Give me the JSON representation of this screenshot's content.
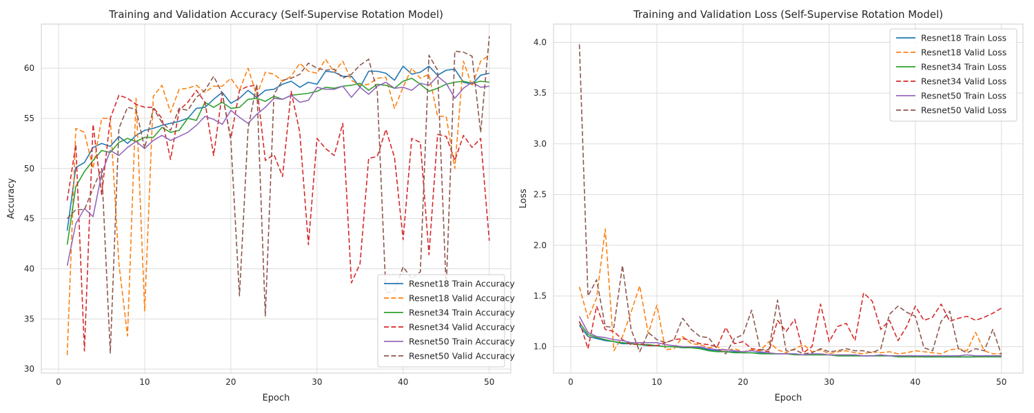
{
  "chart_data": [
    {
      "type": "line",
      "title": "Training and Validation Accuracy (Self-Supervise Rotation Model)",
      "xlabel": "Epoch",
      "ylabel": "Accuracy",
      "xlim": [
        -2,
        52.5
      ],
      "ylim": [
        29.6,
        64.4
      ],
      "xticks": [
        0,
        10,
        20,
        30,
        40,
        50
      ],
      "yticks": [
        30,
        35,
        40,
        45,
        50,
        55,
        60
      ],
      "grid": true,
      "legend_position": "lower-right",
      "x": [
        1,
        2,
        3,
        4,
        5,
        6,
        7,
        8,
        9,
        10,
        11,
        12,
        13,
        14,
        15,
        16,
        17,
        18,
        19,
        20,
        21,
        22,
        23,
        24,
        25,
        26,
        27,
        28,
        29,
        30,
        31,
        32,
        33,
        34,
        35,
        36,
        37,
        38,
        39,
        40,
        41,
        42,
        43,
        44,
        45,
        46,
        47,
        48,
        49,
        50
      ],
      "series": [
        {
          "name": "Resnet18 Train Accuracy",
          "color": "#1f77b4",
          "dash": "solid",
          "values": [
            43.8,
            50.1,
            50.6,
            52.1,
            52.5,
            52.2,
            53.2,
            52.5,
            53.3,
            53.8,
            54.0,
            54.3,
            54.5,
            54.7,
            55.0,
            56.0,
            56.1,
            56.9,
            57.6,
            56.5,
            57.0,
            57.8,
            57.1,
            57.8,
            57.9,
            58.4,
            58.7,
            58.1,
            58.6,
            58.4,
            59.7,
            59.6,
            59.2,
            59.2,
            58.1,
            59.7,
            59.7,
            59.5,
            58.8,
            60.2,
            59.4,
            59.6,
            60.2,
            59.3,
            59.8,
            59.9,
            58.6,
            58.4,
            59.3,
            59.5
          ]
        },
        {
          "name": "Resnet18 Valid Accuracy",
          "color": "#ff7f0e",
          "dash": "dashed",
          "values": [
            31.4,
            54.0,
            53.6,
            50.0,
            55.0,
            55.0,
            40.5,
            33.3,
            57.0,
            35.8,
            57.2,
            58.3,
            55.6,
            57.9,
            58.0,
            58.3,
            57.6,
            58.2,
            58.2,
            59.0,
            57.8,
            60.0,
            57.3,
            59.6,
            59.4,
            58.7,
            59.2,
            60.5,
            59.7,
            59.5,
            60.9,
            59.6,
            60.7,
            58.8,
            58.3,
            58.4,
            59.0,
            59.1,
            56.0,
            58.1,
            60.0,
            59.0,
            59.4,
            55.2,
            55.2,
            50.0,
            60.7,
            58.2,
            60.7,
            61.3
          ]
        },
        {
          "name": "Resnet34 Train Accuracy",
          "color": "#2ca02c",
          "dash": "solid",
          "values": [
            42.4,
            48.2,
            49.7,
            50.8,
            51.8,
            51.6,
            52.6,
            53.0,
            52.7,
            53.1,
            53.1,
            54.1,
            53.6,
            53.8,
            55.0,
            54.8,
            56.6,
            56.1,
            56.6,
            56.0,
            56.1,
            56.9,
            57.0,
            56.7,
            57.2,
            56.9,
            57.3,
            57.4,
            57.5,
            57.7,
            58.1,
            58.0,
            58.2,
            58.3,
            58.5,
            57.8,
            58.4,
            58.3,
            58.0,
            58.7,
            59.0,
            58.4,
            57.7,
            58.0,
            58.4,
            58.6,
            58.7,
            58.5,
            58.7,
            58.6
          ]
        },
        {
          "name": "Resnet34 Valid Accuracy",
          "color": "#d62728",
          "dash": "dashed",
          "values": [
            46.8,
            52.4,
            31.8,
            54.4,
            47.4,
            55.0,
            57.3,
            57.0,
            56.4,
            56.1,
            56.1,
            55.0,
            50.9,
            55.8,
            56.6,
            57.8,
            56.6,
            51.3,
            57.5,
            53.0,
            57.8,
            58.2,
            58.3,
            50.8,
            51.4,
            49.2,
            57.7,
            53.6,
            42.4,
            53.0,
            52.0,
            51.3,
            54.5,
            38.6,
            40.5,
            51.0,
            51.2,
            53.9,
            51.1,
            42.9,
            53.0,
            52.6,
            41.4,
            53.4,
            53.2,
            50.8,
            53.3,
            52.1,
            53.0,
            42.8
          ]
        },
        {
          "name": "Resnet50 Train Accuracy",
          "color": "#9467bd",
          "dash": "solid",
          "values": [
            40.3,
            44.5,
            46.0,
            45.2,
            49.5,
            51.8,
            51.3,
            52.1,
            52.7,
            52.0,
            52.8,
            53.3,
            52.8,
            53.2,
            53.6,
            54.3,
            55.2,
            54.9,
            54.4,
            55.8,
            55.1,
            54.5,
            55.4,
            56.1,
            57.0,
            56.9,
            57.3,
            56.6,
            56.8,
            58.1,
            57.9,
            57.9,
            58.2,
            57.1,
            58.1,
            57.4,
            58.2,
            58.6,
            58.0,
            58.1,
            57.8,
            58.5,
            58.3,
            59.2,
            58.5,
            57.0,
            58.0,
            58.6,
            58.1,
            58.2
          ]
        },
        {
          "name": "Resnet50 Valid Accuracy",
          "color": "#8c564b",
          "dash": "dashed",
          "values": [
            45.0,
            45.9,
            45.9,
            48.0,
            50.0,
            31.6,
            54.0,
            56.1,
            55.9,
            52.0,
            56.0,
            54.6,
            53.8,
            56.0,
            55.8,
            57.1,
            57.8,
            59.2,
            57.5,
            52.8,
            37.3,
            54.0,
            58.4,
            35.3,
            57.4,
            58.8,
            59.0,
            59.4,
            60.5,
            60.0,
            59.8,
            59.9,
            59.0,
            59.4,
            60.3,
            60.9,
            57.7,
            37.6,
            37.8,
            40.2,
            39.0,
            39.7,
            61.3,
            59.8,
            38.0,
            61.7,
            61.6,
            61.2,
            53.6,
            63.2
          ]
        }
      ]
    },
    {
      "type": "line",
      "title": "Training and Validation Loss (Self-Supervise Rotation Model)",
      "xlabel": "Epoch",
      "ylabel": "Loss",
      "xlim": [
        -2,
        52.5
      ],
      "ylim": [
        0.74,
        4.18
      ],
      "xticks": [
        0,
        10,
        20,
        30,
        40,
        50
      ],
      "yticks": [
        1.0,
        1.5,
        2.0,
        2.5,
        3.0,
        3.5,
        4.0
      ],
      "grid": true,
      "legend_position": "upper-right",
      "x": [
        1,
        2,
        3,
        4,
        5,
        6,
        7,
        8,
        9,
        10,
        11,
        12,
        13,
        14,
        15,
        16,
        17,
        18,
        19,
        20,
        21,
        22,
        23,
        24,
        25,
        26,
        27,
        28,
        29,
        30,
        31,
        32,
        33,
        34,
        35,
        36,
        37,
        38,
        39,
        40,
        41,
        42,
        43,
        44,
        45,
        46,
        47,
        48,
        49,
        50
      ],
      "series": [
        {
          "name": "Resnet18 Train Loss",
          "color": "#1f77b4",
          "dash": "solid",
          "values": [
            1.21,
            1.1,
            1.08,
            1.06,
            1.05,
            1.03,
            1.03,
            1.02,
            1.01,
            1.01,
            1.0,
            1.0,
            0.99,
            0.99,
            0.99,
            0.97,
            0.96,
            0.95,
            0.95,
            0.94,
            0.94,
            0.94,
            0.93,
            0.93,
            0.93,
            0.93,
            0.92,
            0.92,
            0.92,
            0.92,
            0.91,
            0.91,
            0.91,
            0.91,
            0.91,
            0.91,
            0.91,
            0.91,
            0.91,
            0.91,
            0.9,
            0.9,
            0.9,
            0.9,
            0.9,
            0.9,
            0.9,
            0.91,
            0.91,
            0.91
          ]
        },
        {
          "name": "Resnet18 Valid Loss",
          "color": "#ff7f0e",
          "dash": "dashed",
          "values": [
            1.59,
            1.28,
            1.48,
            2.16,
            0.96,
            1.1,
            1.34,
            1.6,
            1.13,
            1.41,
            0.97,
            0.98,
            1.1,
            1.03,
            1.02,
            0.99,
            1.0,
            0.96,
            0.98,
            0.95,
            0.97,
            0.96,
            1.05,
            0.97,
            0.94,
            0.98,
            1.02,
            0.95,
            0.97,
            0.93,
            0.95,
            0.96,
            0.94,
            0.93,
            0.95,
            0.94,
            0.95,
            0.93,
            0.94,
            0.96,
            0.95,
            0.94,
            0.93,
            0.97,
            0.98,
            0.96,
            1.14,
            0.96,
            0.93,
            0.93
          ]
        },
        {
          "name": "Resnet34 Train Loss",
          "color": "#2ca02c",
          "dash": "solid",
          "values": [
            1.24,
            1.12,
            1.09,
            1.07,
            1.05,
            1.04,
            1.03,
            1.02,
            1.02,
            1.01,
            1.0,
            1.0,
            0.99,
            0.99,
            0.98,
            0.96,
            0.95,
            0.95,
            0.94,
            0.94,
            0.94,
            0.93,
            0.93,
            0.93,
            0.93,
            0.92,
            0.92,
            0.92,
            0.92,
            0.92,
            0.91,
            0.91,
            0.91,
            0.91,
            0.91,
            0.91,
            0.91,
            0.9,
            0.9,
            0.9,
            0.9,
            0.9,
            0.9,
            0.9,
            0.9,
            0.9,
            0.9,
            0.9,
            0.9,
            0.9
          ]
        },
        {
          "name": "Resnet34 Valid Loss",
          "color": "#d62728",
          "dash": "dashed",
          "values": [
            1.25,
            0.98,
            1.4,
            1.17,
            1.15,
            1.07,
            1.02,
            1.03,
            1.01,
            1.01,
            1.04,
            1.07,
            1.08,
            1.06,
            1.03,
            1.02,
            1.0,
            1.19,
            1.03,
            1.05,
            0.98,
            0.97,
            0.95,
            1.26,
            1.15,
            1.27,
            0.94,
            1.0,
            1.42,
            1.05,
            1.2,
            1.23,
            1.06,
            1.53,
            1.45,
            1.17,
            1.26,
            1.06,
            1.2,
            1.4,
            1.26,
            1.29,
            1.42,
            1.25,
            1.28,
            1.3,
            1.26,
            1.29,
            1.33,
            1.38
          ]
        },
        {
          "name": "Resnet50 Train Loss",
          "color": "#9467bd",
          "dash": "solid",
          "values": [
            1.3,
            1.14,
            1.1,
            1.09,
            1.07,
            1.06,
            1.04,
            1.04,
            1.04,
            1.04,
            1.02,
            1.01,
            1.0,
            1.0,
            1.0,
            0.98,
            0.97,
            0.97,
            0.96,
            0.95,
            0.96,
            0.95,
            0.94,
            0.93,
            0.93,
            0.93,
            0.92,
            0.93,
            0.93,
            0.92,
            0.92,
            0.92,
            0.92,
            0.91,
            0.91,
            0.92,
            0.91,
            0.91,
            0.91,
            0.91,
            0.91,
            0.91,
            0.91,
            0.91,
            0.91,
            0.92,
            0.91,
            0.91,
            0.91,
            0.91
          ]
        },
        {
          "name": "Resnet50 Valid Loss",
          "color": "#8c564b",
          "dash": "dashed",
          "values": [
            3.98,
            1.5,
            1.66,
            1.2,
            1.19,
            1.8,
            1.17,
            0.95,
            1.14,
            1.07,
            1.04,
            1.07,
            1.28,
            1.17,
            1.1,
            1.09,
            0.98,
            0.93,
            1.08,
            1.12,
            1.36,
            0.97,
            0.97,
            1.46,
            0.96,
            0.97,
            0.93,
            0.94,
            0.98,
            0.95,
            0.96,
            0.98,
            0.96,
            0.96,
            0.94,
            0.98,
            1.32,
            1.4,
            1.34,
            1.3,
            0.99,
            0.96,
            1.25,
            1.35,
            0.98,
            0.94,
            0.98,
            0.96,
            1.17,
            0.92
          ]
        }
      ]
    }
  ]
}
